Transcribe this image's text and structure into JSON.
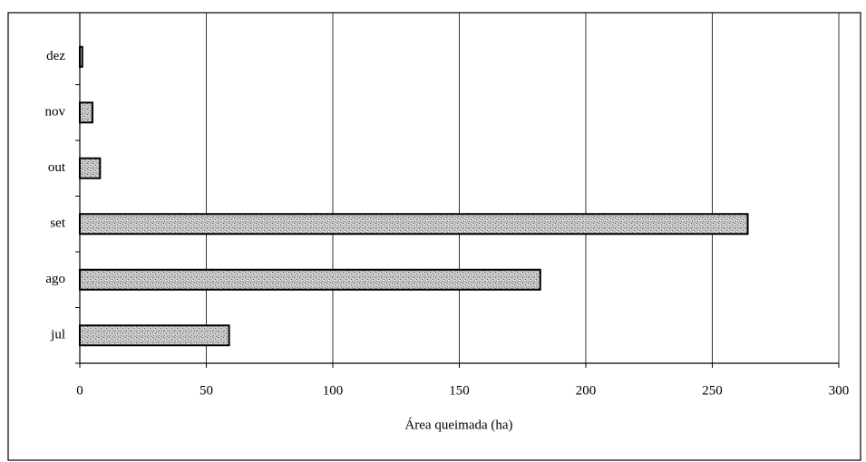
{
  "chart_data": {
    "type": "bar",
    "orientation": "horizontal",
    "categories": [
      "jul",
      "ago",
      "set",
      "out",
      "nov",
      "dez"
    ],
    "values": [
      59,
      182,
      264,
      8,
      5,
      1
    ],
    "color": "#b0b0b0",
    "x_label": "Área queimada (ha)",
    "xlim": [
      0,
      300
    ],
    "xticks": [
      0,
      50,
      100,
      150,
      200,
      250,
      300
    ],
    "grid": true
  }
}
